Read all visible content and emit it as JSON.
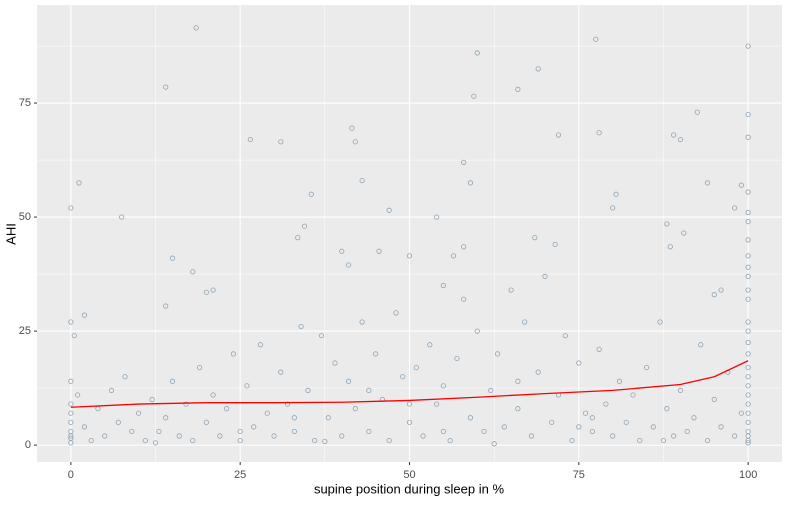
{
  "chart_data": {
    "type": "scatter",
    "x_label": "supine position during sleep in %",
    "y_label": "AHI",
    "xlim": [
      -5,
      105
    ],
    "ylim": [
      -3.7,
      96.5
    ],
    "xticks": [
      0,
      25,
      50,
      75,
      100
    ],
    "yticks": [
      0,
      25,
      50,
      75
    ],
    "x_minor_ticks": [
      12.5,
      37.5,
      62.5,
      87.5
    ],
    "y_minor_ticks": [
      12.5,
      37.5,
      62.5,
      87.5
    ],
    "grid": true,
    "series": [
      {
        "color": "#8fa3b3",
        "x": [
          2,
          3,
          4,
          5,
          6,
          7,
          8,
          9,
          10,
          11,
          12,
          13,
          14,
          15,
          16,
          17,
          18,
          19,
          20,
          21,
          22,
          23,
          24,
          25,
          26,
          27,
          28,
          29,
          30,
          31,
          32,
          33,
          34,
          35,
          36,
          37,
          38,
          39,
          40,
          41,
          42,
          43,
          44,
          45,
          46,
          47,
          48,
          49,
          50,
          51,
          52,
          53,
          54,
          55,
          56,
          57,
          58,
          59,
          60,
          61,
          62,
          63,
          64,
          65,
          66,
          67,
          68,
          69,
          70,
          71,
          72,
          73,
          74,
          75,
          76,
          77,
          78,
          79,
          80,
          81,
          82,
          83,
          84,
          85,
          86,
          87,
          88,
          89,
          90,
          91,
          92,
          93,
          94,
          95,
          96,
          97,
          98,
          99,
          12.5,
          37.5,
          62.5,
          87.5,
          25,
          50,
          75,
          33,
          44,
          55,
          66,
          77,
          0,
          1.2,
          0,
          0.5,
          0,
          2,
          1,
          7.5,
          14,
          18.5,
          15,
          18,
          20,
          21,
          14,
          26.5,
          31,
          41.5,
          42,
          43,
          35.5,
          34.5,
          33.5,
          40,
          45.5,
          41,
          47,
          50,
          54,
          55,
          56.5,
          58,
          59,
          59.5,
          60,
          58,
          66,
          69,
          71.5,
          68.5,
          72,
          77.5,
          78,
          80,
          80.5,
          88,
          89,
          90,
          90.5,
          88.5,
          92.5,
          94,
          96,
          95,
          98,
          99,
          100,
          100,
          100,
          100,
          100,
          100,
          100,
          100,
          100,
          100,
          100,
          100,
          100,
          100,
          100,
          100,
          100,
          100,
          100,
          100,
          100,
          100,
          100,
          100,
          100,
          0,
          0,
          0,
          0,
          0,
          0,
          100,
          0,
          100
        ],
        "values": [
          4,
          1,
          8,
          2,
          12,
          5,
          15,
          3,
          7,
          1,
          10,
          3,
          6,
          14,
          2,
          9,
          1,
          17,
          5,
          11,
          2,
          8,
          20,
          1,
          13,
          4,
          22,
          7,
          2,
          16,
          9,
          3,
          26,
          12,
          1,
          24,
          6,
          18,
          2,
          14,
          8,
          27,
          3,
          20,
          10,
          1,
          29,
          15,
          5,
          17,
          2,
          22,
          9,
          13,
          1,
          19,
          32,
          6,
          25,
          3,
          12,
          20,
          4,
          34,
          8,
          27,
          2,
          16,
          37,
          5,
          11,
          24,
          1,
          18,
          7,
          3,
          21,
          9,
          2,
          14,
          5,
          11,
          1,
          17,
          4,
          27,
          8,
          2,
          12,
          3,
          6,
          22,
          1,
          10,
          4,
          16,
          2,
          7,
          0.5,
          0.8,
          0.3,
          1,
          3,
          9,
          4,
          6,
          12,
          3,
          14,
          6,
          52,
          57.5,
          27,
          24,
          14,
          28.5,
          11,
          50,
          78.5,
          91.5,
          41,
          38,
          33.5,
          34,
          30.5,
          67,
          66.5,
          69.5,
          66.5,
          58,
          55,
          48,
          45.5,
          42.5,
          42.5,
          39.5,
          51.5,
          41.5,
          50,
          35,
          41.5,
          43.5,
          57.5,
          76.5,
          86,
          62,
          78,
          82.5,
          44,
          45.5,
          68,
          89,
          68.5,
          52,
          55,
          48.5,
          68,
          67,
          46.5,
          43.5,
          73,
          57.5,
          34,
          33,
          52,
          57,
          87.5,
          72.5,
          67.5,
          55.5,
          51,
          49,
          45,
          41.5,
          39,
          37,
          34,
          32,
          27,
          25,
          22.5,
          20,
          17,
          15,
          13,
          11,
          9,
          7,
          5,
          3,
          1,
          0.5,
          1.5,
          3,
          5,
          7,
          9,
          0.5,
          2,
          2
        ]
      }
    ],
    "trend_line": {
      "color": "#ff0000",
      "x": [
        0,
        10,
        20,
        30,
        40,
        50,
        60,
        70,
        80,
        90,
        95,
        100
      ],
      "values": [
        8.3,
        9.0,
        9.3,
        9.3,
        9.4,
        9.8,
        10.5,
        11.3,
        12.0,
        13.3,
        15.0,
        18.5
      ]
    }
  }
}
